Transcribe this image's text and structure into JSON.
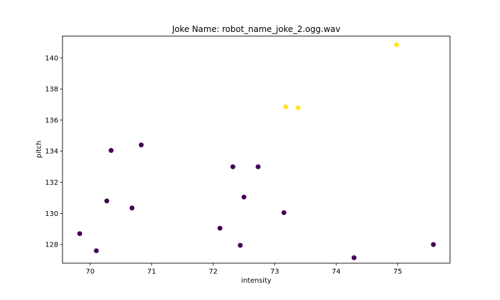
{
  "chart_data": {
    "type": "scatter",
    "title": "Joke Name: robot_name_joke_2.ogg.wav",
    "xlabel": "intensity",
    "ylabel": "pitch",
    "xlim": [
      69.55,
      75.85
    ],
    "ylim": [
      126.8,
      141.4
    ],
    "xticks": [
      70,
      71,
      72,
      73,
      74,
      75
    ],
    "yticks": [
      128,
      130,
      132,
      134,
      136,
      138,
      140
    ],
    "grid": false,
    "legend": "none",
    "colors": {
      "class_0": "#440154",
      "class_1": "#fde725"
    },
    "points": [
      {
        "x": 69.83,
        "y": 128.7,
        "class": 0
      },
      {
        "x": 70.1,
        "y": 127.6,
        "class": 0
      },
      {
        "x": 70.27,
        "y": 130.8,
        "class": 0
      },
      {
        "x": 70.34,
        "y": 134.05,
        "class": 0
      },
      {
        "x": 70.68,
        "y": 130.35,
        "class": 0
      },
      {
        "x": 70.83,
        "y": 134.4,
        "class": 0
      },
      {
        "x": 72.11,
        "y": 129.05,
        "class": 0
      },
      {
        "x": 72.32,
        "y": 133.0,
        "class": 0
      },
      {
        "x": 72.44,
        "y": 127.95,
        "class": 0
      },
      {
        "x": 72.5,
        "y": 131.05,
        "class": 0
      },
      {
        "x": 72.73,
        "y": 133.0,
        "class": 0
      },
      {
        "x": 73.15,
        "y": 130.05,
        "class": 0
      },
      {
        "x": 73.18,
        "y": 136.85,
        "class": 1
      },
      {
        "x": 73.38,
        "y": 136.8,
        "class": 1
      },
      {
        "x": 74.29,
        "y": 127.15,
        "class": 0
      },
      {
        "x": 74.98,
        "y": 140.85,
        "class": 1
      },
      {
        "x": 75.58,
        "y": 128.0,
        "class": 0
      }
    ]
  }
}
